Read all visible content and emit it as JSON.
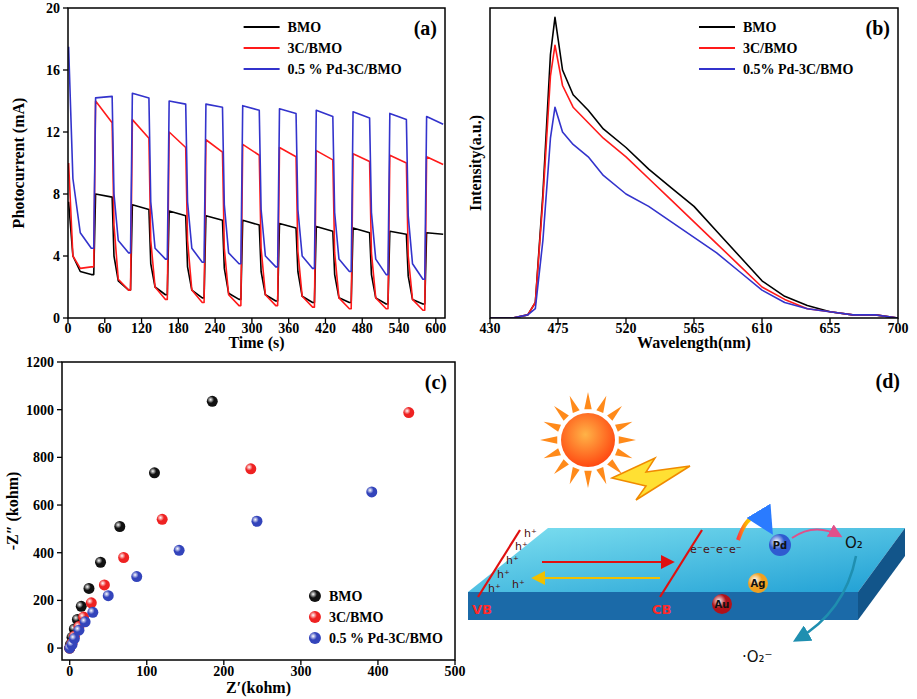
{
  "chart_data": [
    {
      "type": "line",
      "panel_label": "(a)",
      "x_label": "Time (s)",
      "y_label": "Photocurrent (mA)",
      "x": [
        1,
        8,
        20,
        38,
        42,
        45,
        72,
        75,
        82,
        99,
        102,
        105,
        132,
        135,
        142,
        159,
        162,
        165,
        192,
        195,
        202,
        219,
        222,
        225,
        252,
        255,
        262,
        279,
        282,
        285,
        312,
        315,
        322,
        339,
        342,
        345,
        372,
        375,
        382,
        399,
        402,
        405,
        432,
        435,
        442,
        459,
        462,
        465,
        492,
        495,
        502,
        519,
        522,
        525,
        552,
        555,
        562,
        579,
        582,
        585,
        612
      ],
      "series": [
        {
          "name": "BMO",
          "color": "#000000",
          "line_style": "solid",
          "values": [
            7.5,
            4,
            3,
            2.8,
            2.8,
            8,
            7.8,
            4,
            2.4,
            1.8,
            1.8,
            7.3,
            7,
            3.5,
            2,
            1.5,
            1.5,
            6.9,
            6.6,
            3.3,
            1.8,
            1.3,
            1.3,
            6.6,
            6.3,
            3.2,
            1.6,
            1.2,
            1.2,
            6.3,
            6,
            3,
            1.5,
            1.1,
            1.1,
            6.1,
            5.8,
            3,
            1.4,
            1,
            1,
            5.9,
            5.6,
            2.8,
            1.3,
            1,
            1,
            5.8,
            5.5,
            2.8,
            1.3,
            0.9,
            0.9,
            5.6,
            5.4,
            2.7,
            1.2,
            0.9,
            0.9,
            5.5,
            5.4
          ]
        },
        {
          "name": "3C/BMO",
          "color": "#ff1a1a",
          "line_style": "solid",
          "values": [
            10,
            4,
            3.2,
            3.3,
            3.3,
            14,
            12.6,
            6,
            2.5,
            1.8,
            1.8,
            12.8,
            11.6,
            5,
            2,
            1.2,
            1.2,
            12,
            11,
            5,
            1.8,
            1,
            1,
            11.5,
            10.7,
            4.5,
            1.5,
            0.8,
            0.8,
            11.2,
            10.5,
            4.5,
            1.5,
            0.8,
            0.8,
            11,
            10.4,
            4.3,
            1.4,
            0.7,
            0.7,
            10.8,
            10.2,
            4.2,
            1.3,
            0.6,
            0.6,
            10.6,
            10.1,
            4.2,
            1.3,
            0.6,
            0.6,
            10.5,
            10,
            4,
            1.2,
            0.5,
            0.5,
            10.4,
            9.9
          ]
        },
        {
          "name": "0.5 % Pd-3C/BMO",
          "color": "#3333cc",
          "line_style": "solid",
          "values": [
            17.5,
            9,
            5.5,
            4.5,
            4.5,
            14.2,
            14.3,
            8,
            5,
            4.2,
            4.2,
            14.5,
            14.2,
            7.5,
            4.5,
            3.8,
            3.8,
            14,
            13.8,
            7.5,
            4.5,
            3.6,
            3.6,
            13.8,
            13.6,
            7.3,
            4.2,
            3.5,
            3.5,
            13.7,
            13.4,
            7,
            4,
            3.3,
            3.3,
            13.5,
            13.2,
            7,
            4,
            3.2,
            3.2,
            13.4,
            13,
            6.8,
            3.8,
            3,
            3,
            13.3,
            12.9,
            6.8,
            3.8,
            2.8,
            2.8,
            13.2,
            12.8,
            6.6,
            3.5,
            2.5,
            2.5,
            13,
            12.5
          ]
        }
      ],
      "xlim": [
        0,
        615
      ],
      "xticks": [
        0,
        60,
        120,
        180,
        240,
        300,
        360,
        420,
        480,
        540,
        600
      ],
      "ylim": [
        0,
        20
      ],
      "yticks": [
        0,
        4,
        8,
        12,
        16,
        20
      ],
      "grid": false,
      "legend": "upper right"
    },
    {
      "type": "line",
      "panel_label": "(b)",
      "x_label": "Wavelength(nm)",
      "y_label": "Intensity(a.u.)",
      "x": [
        430,
        445,
        455,
        460,
        465,
        470,
        473,
        478,
        485,
        495,
        505,
        520,
        535,
        550,
        565,
        580,
        595,
        610,
        625,
        640,
        655,
        670,
        685,
        700
      ],
      "series": [
        {
          "name": "BMO",
          "color": "#000000",
          "line_style": "solid",
          "values": [
            0,
            0,
            1,
            5,
            40,
            85,
            97,
            80,
            72,
            67,
            61,
            55,
            48,
            42,
            36,
            28,
            20,
            12,
            7,
            4,
            2,
            1,
            1,
            0
          ]
        },
        {
          "name": "3C/BMO",
          "color": "#ff1a1a",
          "line_style": "solid",
          "values": [
            0,
            0,
            1,
            5,
            38,
            78,
            88,
            75,
            68,
            63,
            58,
            52,
            45,
            38,
            31,
            24,
            17,
            10,
            6,
            3,
            2,
            1,
            1,
            0
          ]
        },
        {
          "name": "0.5% Pd-3C/BMO",
          "color": "#3333cc",
          "line_style": "solid",
          "values": [
            0,
            0,
            1,
            3,
            25,
            58,
            68,
            60,
            56,
            52,
            46,
            40,
            36,
            31,
            26,
            21,
            15,
            9,
            5,
            3,
            2,
            1,
            1,
            0
          ]
        }
      ],
      "xlim": [
        430,
        700
      ],
      "xticks": [
        430,
        475,
        520,
        565,
        610,
        655,
        700
      ],
      "ylim": [
        0,
        100
      ],
      "tick_labels": "x",
      "grid": false,
      "legend": "upper right"
    },
    {
      "type": "scatter",
      "panel_label": "(c)",
      "x_label": "Z′(kohm)",
      "y_label": "-Z″ (kohm)",
      "series": [
        {
          "name": "BMO",
          "color": "#111111",
          "marker": "circle",
          "x": [
            0,
            1,
            3,
            6,
            10,
            15,
            25,
            40,
            65,
            110,
            185
          ],
          "values": [
            0,
            15,
            45,
            80,
            120,
            175,
            250,
            360,
            510,
            735,
            1035
          ]
        },
        {
          "name": "3C/BMO",
          "color": "#ee2222",
          "marker": "circle",
          "x": [
            0,
            3,
            6,
            12,
            18,
            28,
            45,
            70,
            120,
            235,
            440
          ],
          "values": [
            0,
            20,
            50,
            90,
            130,
            190,
            265,
            380,
            540,
            752,
            988
          ]
        },
        {
          "name": "0.5 % Pd-3C/BMO",
          "color": "#3344bb",
          "marker": "circle",
          "x": [
            0,
            3,
            6,
            12,
            20,
            30,
            50,
            87,
            142,
            243,
            392
          ],
          "values": [
            0,
            15,
            40,
            75,
            110,
            150,
            220,
            300,
            410,
            532,
            655
          ]
        }
      ],
      "xlim": [
        -10,
        500
      ],
      "xticks": [
        0,
        100,
        200,
        300,
        400,
        500
      ],
      "ylim": [
        -50,
        1200
      ],
      "yticks": [
        0,
        200,
        400,
        600,
        800,
        1000,
        1200
      ],
      "grid": false,
      "legend": "lower right"
    }
  ],
  "diagram": {
    "panel_label": "(d)",
    "band_labels": [
      "VB",
      "CB"
    ],
    "hole": "h⁺",
    "electron": "e⁻",
    "metals": [
      "Pd",
      "Ag",
      "Au"
    ],
    "molecule": "O₂",
    "radical": "·O₂⁻"
  }
}
